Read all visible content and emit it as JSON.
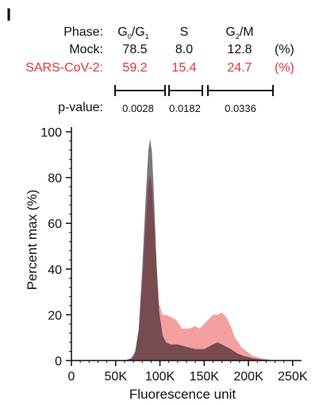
{
  "figure": {
    "panel_letter": "I",
    "phase_label": "Phase:",
    "phases": [
      "G",
      "S",
      "G"
    ],
    "phase_subs": [
      [
        "0",
        "1"
      ],
      [],
      [
        "2"
      ]
    ],
    "phase_sep": [
      "/",
      "",
      "/"
    ],
    "phase_tail": [
      "G",
      "",
      "M"
    ],
    "rows": [
      {
        "label": "Mock:",
        "values": [
          "78.5",
          "8.0",
          "12.8"
        ],
        "unit": "(%)"
      },
      {
        "label": "SARS-CoV-2:",
        "values": [
          "59.2",
          "15.4",
          "24.7"
        ],
        "unit": "(%)"
      }
    ],
    "pvalue_label": "p-value:",
    "pvalues": [
      "0.0028",
      "0.0182",
      "0.0336"
    ]
  },
  "colors": {
    "mock": "#6e6872",
    "sars": "#f08080",
    "overlap": "#8a5a5e",
    "red_text": "#e4343c"
  },
  "chart_data": {
    "type": "area",
    "xlabel": "Fluorescence unit",
    "ylabel": "Percent max (%)",
    "xlim": [
      0,
      260000
    ],
    "ylim": [
      0,
      100
    ],
    "xticks": [
      0,
      50000,
      100000,
      150000,
      200000,
      250000
    ],
    "xtick_labels": [
      "0",
      "50K",
      "100K",
      "150K",
      "200K",
      "250K"
    ],
    "yticks": [
      0,
      20,
      40,
      60,
      80,
      100
    ],
    "ytick_labels": [
      "0",
      "20",
      "40",
      "60",
      "80",
      "100"
    ],
    "series": [
      {
        "name": "Mock",
        "x": [
          60000,
          68000,
          72000,
          76000,
          80000,
          84000,
          87000,
          89000,
          91000,
          93000,
          96000,
          99000,
          103000,
          107000,
          112000,
          120000,
          130000,
          140000,
          150000,
          160000,
          165000,
          170000,
          175000,
          180000,
          188000,
          195000,
          205000,
          215000,
          230000
        ],
        "y": [
          0,
          1,
          4,
          14,
          40,
          72,
          92,
          97,
          91,
          75,
          45,
          22,
          11,
          8,
          7,
          7,
          6,
          5,
          5,
          7,
          8,
          7,
          6,
          5,
          3,
          2,
          1,
          0.5,
          0
        ]
      },
      {
        "name": "SARS-CoV-2",
        "x": [
          60000,
          68000,
          72000,
          76000,
          80000,
          84000,
          87000,
          89000,
          91000,
          93000,
          96000,
          99000,
          103000,
          107000,
          112000,
          118000,
          125000,
          133000,
          140000,
          145000,
          150000,
          155000,
          160000,
          165000,
          170000,
          175000,
          180000,
          185000,
          192000,
          198000,
          205000,
          215000,
          230000
        ],
        "y": [
          0,
          1,
          3,
          12,
          33,
          60,
          78,
          81,
          76,
          62,
          40,
          25,
          20,
          20,
          19,
          18,
          14,
          14,
          15,
          14,
          16,
          18,
          20,
          20,
          21,
          19,
          15,
          10,
          6,
          4,
          2,
          1,
          0
        ]
      }
    ]
  }
}
